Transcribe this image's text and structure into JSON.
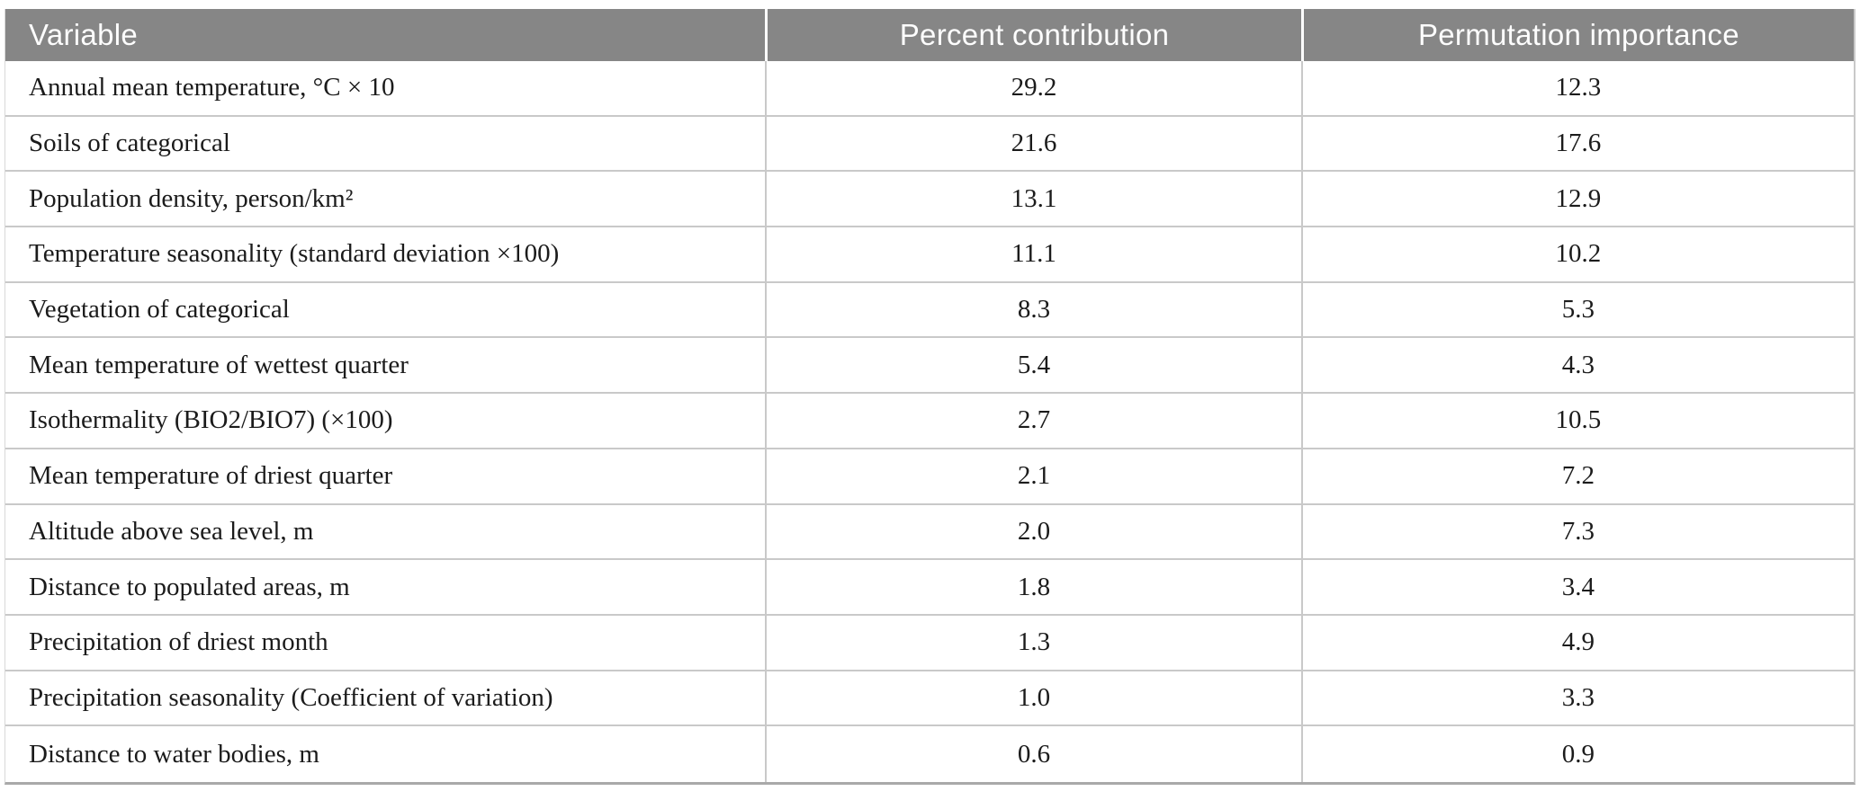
{
  "table": {
    "columns": [
      {
        "label": "Variable",
        "align": "left"
      },
      {
        "label": "Percent contribution",
        "align": "center"
      },
      {
        "label": "Permutation importance",
        "align": "center"
      }
    ],
    "rows": [
      {
        "variable": "Annual mean temperature, °C × 10",
        "percent_contribution": "29.2",
        "permutation_importance": "12.3"
      },
      {
        "variable": "Soils of categorical",
        "percent_contribution": "21.6",
        "permutation_importance": "17.6"
      },
      {
        "variable": "Population density, person/km²",
        "percent_contribution": "13.1",
        "permutation_importance": "12.9"
      },
      {
        "variable": "Temperature seasonality (standard deviation ×100)",
        "percent_contribution": "11.1",
        "permutation_importance": "10.2"
      },
      {
        "variable": "Vegetation of categorical",
        "percent_contribution": "8.3",
        "permutation_importance": "5.3"
      },
      {
        "variable": "Mean temperature of wettest quarter",
        "percent_contribution": "5.4",
        "permutation_importance": "4.3"
      },
      {
        "variable": "Isothermality (BIO2/BIO7) (×100)",
        "percent_contribution": "2.7",
        "permutation_importance": "10.5"
      },
      {
        "variable": "Mean temperature of driest quarter",
        "percent_contribution": "2.1",
        "permutation_importance": "7.2"
      },
      {
        "variable": "Altitude above sea level, m",
        "percent_contribution": "2.0",
        "permutation_importance": "7.3"
      },
      {
        "variable": "Distance to populated areas, m",
        "percent_contribution": "1.8",
        "permutation_importance": "3.4"
      },
      {
        "variable": "Precipitation of driest month",
        "percent_contribution": "1.3",
        "permutation_importance": "4.9"
      },
      {
        "variable": "Precipitation seasonality (Coefficient of variation)",
        "percent_contribution": "1.0",
        "permutation_importance": "3.3"
      },
      {
        "variable": "Distance to water bodies, m",
        "percent_contribution": "0.6",
        "permutation_importance": "0.9"
      }
    ]
  },
  "colors": {
    "header_bg": "#868686",
    "header_text": "#fdfdfd",
    "body_text": "#1b1b1b",
    "grid_line": "#c9c9c9",
    "bottom_border": "#a9a9a9",
    "background": "#ffffff"
  }
}
